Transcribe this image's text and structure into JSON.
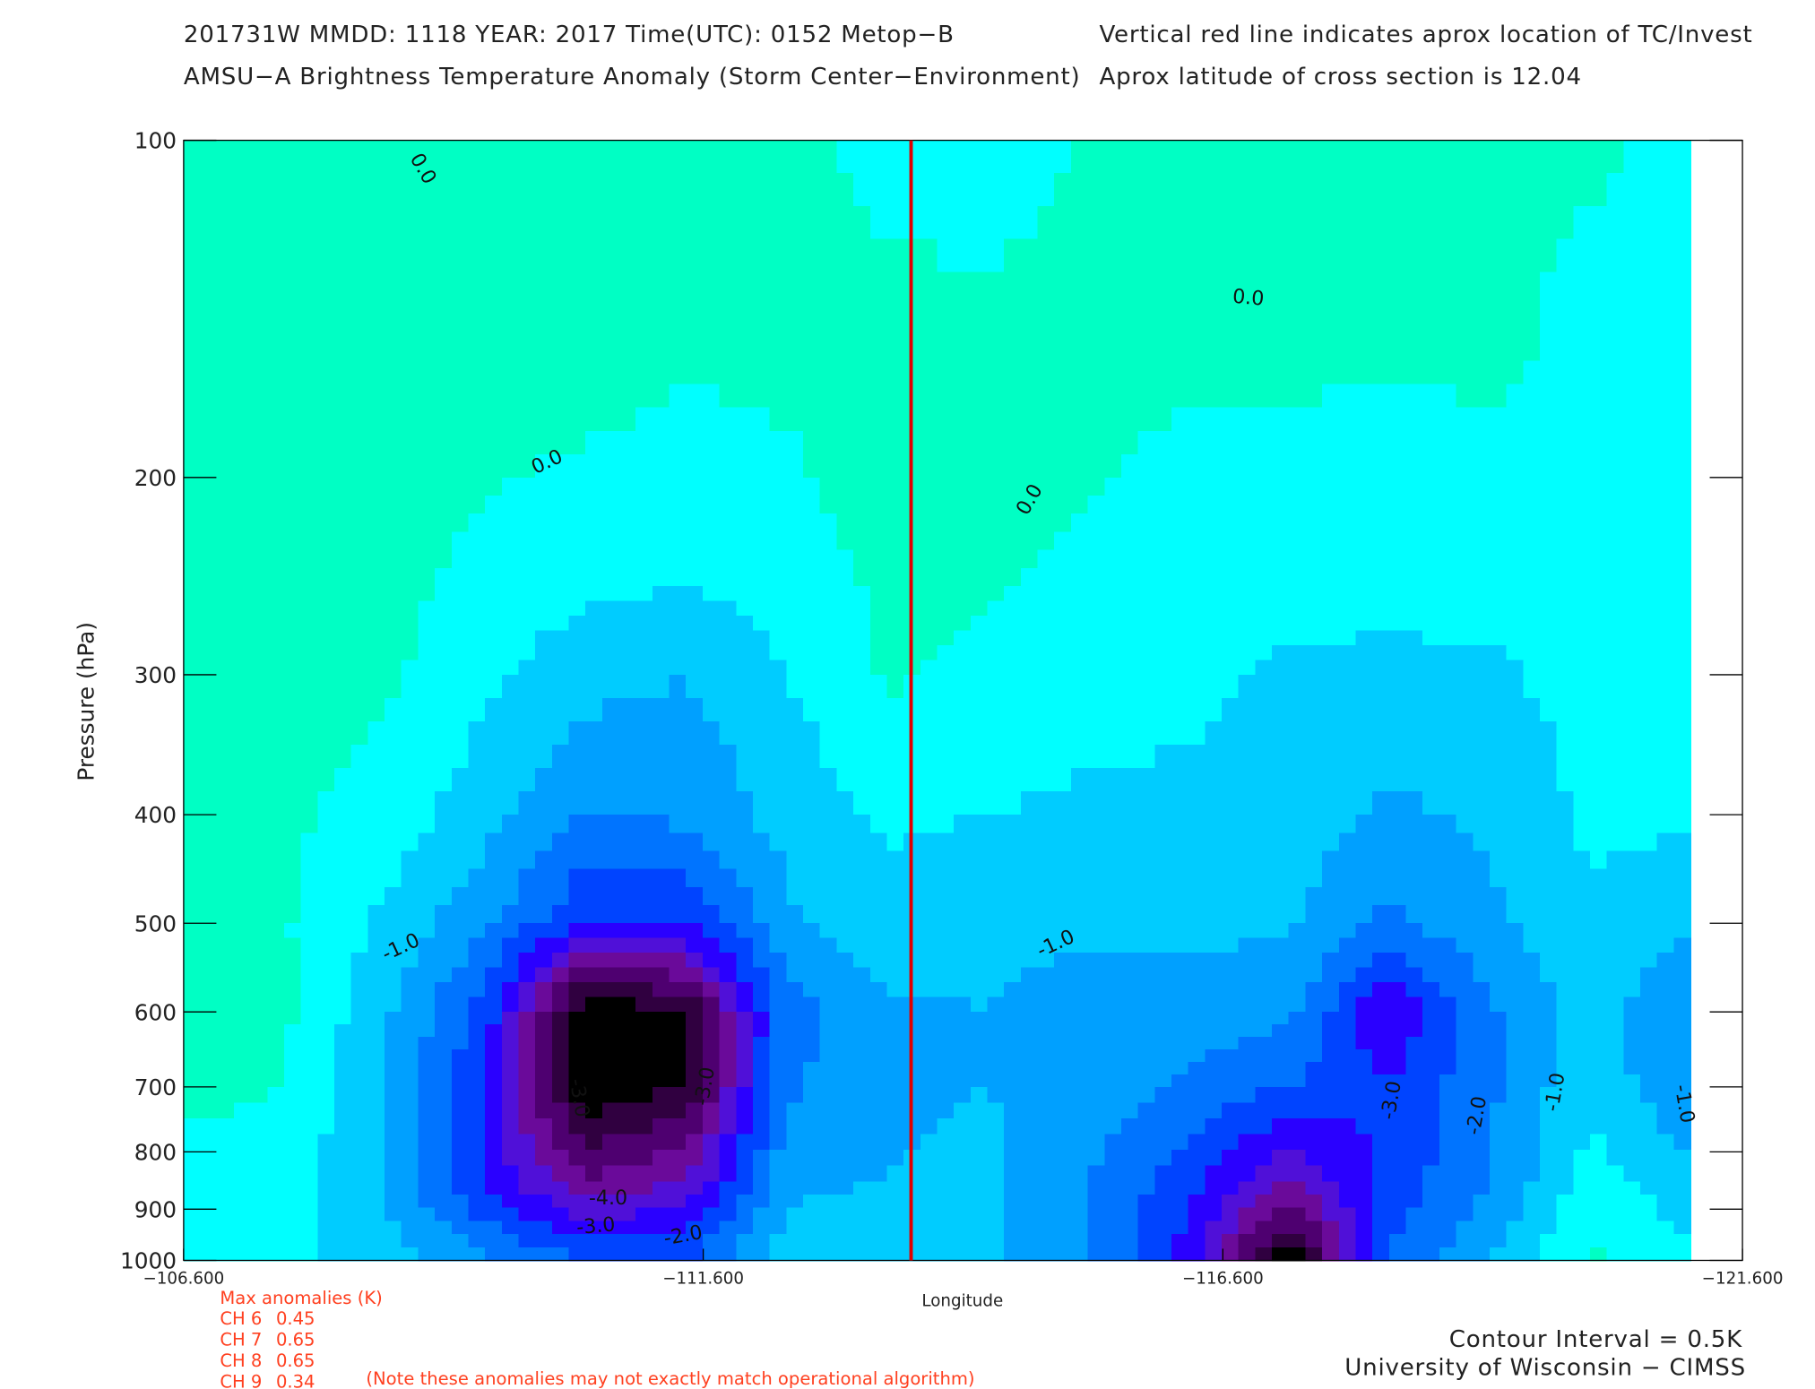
{
  "chart_data": {
    "type": "contour",
    "header": [
      "201731W  MMDD: 1118 YEAR: 2017 Time(UTC): 0152 Metop−B",
      "AMSU−A Brightness Temperature Anomaly (Storm Center−Environment)"
    ],
    "header_right": [
      "Vertical red line indicates aprox location of TC/Invest",
      "Aprox latitude of cross section is 12.04"
    ],
    "y_label": "Pressure (hPa)",
    "x_label": "Longitude",
    "xlim": [
      -106.6,
      -121.6
    ],
    "xticks": [
      {
        "value": -106.6,
        "label": "−106.600"
      },
      {
        "value": -111.6,
        "label": "−111.600"
      },
      {
        "value": -116.6,
        "label": "−116.600"
      },
      {
        "value": -121.6,
        "label": "−121.600"
      }
    ],
    "ylim": [
      1000,
      100
    ],
    "y_log": true,
    "yticks": [
      100,
      200,
      300,
      400,
      500,
      600,
      700,
      800,
      900,
      1000
    ],
    "x": [
      -106.6,
      -107.567,
      -108.533,
      -109.5,
      -110.467,
      -111.433,
      -112.4,
      -113.367,
      -114.333,
      -115.3,
      -116.267,
      -117.233,
      -118.2,
      -119.167,
      -120.133,
      -121.1
    ],
    "y": [
      100,
      150,
      200,
      250,
      300,
      400,
      500,
      600,
      700,
      850,
      1000
    ],
    "z": [
      [
        0.2,
        0.3,
        0.1,
        0.1,
        0.1,
        0.1,
        0.05,
        -0.1,
        -0.1,
        0.0,
        0.05,
        0.1,
        0.1,
        0.05,
        0.05,
        -0.1
      ],
      [
        0.2,
        0.2,
        0.2,
        0.1,
        0.3,
        0.1,
        0.2,
        0.1,
        0.05,
        0.1,
        0.1,
        0.1,
        0.1,
        0.1,
        -0.1,
        -0.1
      ],
      [
        0.2,
        0.2,
        0.2,
        0.05,
        -0.1,
        -0.2,
        -0.1,
        0.3,
        0.1,
        0.05,
        -0.1,
        -0.1,
        -0.2,
        -0.1,
        -0.1,
        -0.2
      ],
      [
        0.2,
        0.2,
        0.2,
        -0.2,
        -0.4,
        -0.5,
        -0.3,
        0.1,
        0.05,
        -0.1,
        -0.3,
        -0.3,
        -0.4,
        -0.3,
        -0.2,
        -0.2
      ],
      [
        0.2,
        0.2,
        0.1,
        -0.4,
        -0.8,
        -1.0,
        -0.5,
        0.05,
        -0.1,
        -0.3,
        -0.4,
        -0.6,
        -0.6,
        -0.6,
        -0.3,
        -0.3
      ],
      [
        0.1,
        0.1,
        -0.2,
        -0.8,
        -1.5,
        -1.4,
        -0.8,
        -0.4,
        -0.5,
        -0.6,
        -0.6,
        -0.7,
        -1.1,
        -0.9,
        -0.4,
        -0.4
      ],
      [
        0.1,
        0.05,
        -0.6,
        -1.4,
        -2.5,
        -2.5,
        -1.1,
        -0.7,
        -0.9,
        -0.9,
        -0.9,
        -0.9,
        -1.6,
        -1.1,
        -0.6,
        -0.9
      ],
      [
        0.4,
        0.1,
        -0.9,
        -2.2,
        -5.5,
        -5.0,
        -1.7,
        -1.1,
        -1.0,
        -1.2,
        -1.2,
        -1.4,
        -3.0,
        -1.6,
        -0.8,
        -1.5
      ],
      [
        0.2,
        0.0,
        -1.0,
        -2.5,
        -5.5,
        -5.0,
        -1.6,
        -1.1,
        -1.0,
        -1.2,
        -1.6,
        -2.0,
        -2.5,
        -1.6,
        -0.6,
        -1.5
      ],
      [
        -0.3,
        -0.3,
        -1.0,
        -2.6,
        -4.0,
        -3.5,
        -1.1,
        -1.0,
        -0.9,
        -1.5,
        -2.3,
        -3.5,
        -2.3,
        -1.5,
        -0.3,
        -0.8
      ],
      [
        -0.3,
        -0.4,
        -0.8,
        -1.4,
        -2.0,
        -2.0,
        -0.8,
        -0.6,
        -0.9,
        -1.4,
        -2.8,
        -5.5,
        -2.0,
        -1.0,
        0.1,
        -0.4
      ]
    ],
    "levels": [
      -5,
      -4.5,
      -4,
      -3.5,
      -3,
      -2.5,
      -2,
      -1.5,
      -1,
      -0.5,
      0,
      0.5
    ],
    "colors": [
      "#000000",
      "#300040",
      "#4e0070",
      "#6a0a9a",
      "#5010d8",
      "#2a00ff",
      "#0044ff",
      "#0074ff",
      "#00a0ff",
      "#00ccff",
      "#00ffff",
      "#00ffc4",
      "#00e878"
    ],
    "storm_longitude": -113.6,
    "storm_color": "#e00000",
    "contour_labels": [
      "0.0",
      "0.0",
      "0.0",
      "0.0",
      "-1.0",
      "-1.0",
      "-4.0",
      "-3.0",
      "-2.0",
      "-3.0",
      "-3.0",
      "-3.0",
      "-2.0",
      "-1.0",
      "-1.0"
    ]
  },
  "footer": {
    "title": "Max anomalies (K)",
    "channels": [
      {
        "name": "CH 6",
        "value": 0.45
      },
      {
        "name": "CH 7",
        "value": 0.65
      },
      {
        "name": "CH 8",
        "value": 0.65
      },
      {
        "name": "CH 9",
        "value": 0.34
      }
    ],
    "note": "(Note these anomalies may not exactly match operational algorithm)",
    "interval": "Contour Interval = 0.5K",
    "credit": "University of Wisconsin − CIMSS"
  }
}
